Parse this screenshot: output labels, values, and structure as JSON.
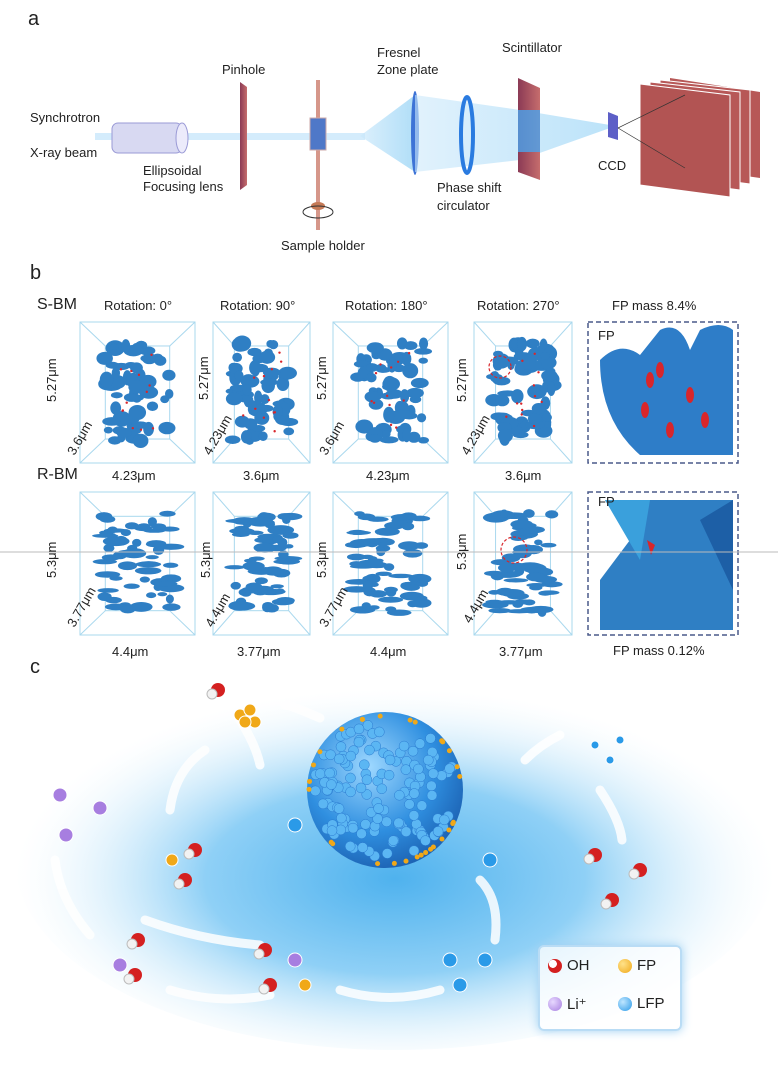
{
  "panel_a": {
    "label": "a",
    "components": {
      "source_line1": "Synchrotron",
      "source_line2": "X-ray beam",
      "lens_line1": "Ellipsoidal",
      "lens_line2": "Focusing lens",
      "pinhole": "Pinhole",
      "sample_holder": "Sample holder",
      "zone_plate_line1": "Fresnel",
      "zone_plate_line2": "Zone plate",
      "phase_line1": "Phase shift",
      "phase_line2": "circulator",
      "scintillator": "Scintillator",
      "ccd": "CCD"
    }
  },
  "panel_b": {
    "label": "b",
    "rows": [
      {
        "name": "S-BM",
        "fp_mass": "FP mass 8.4%",
        "fp_label": "FP",
        "views": [
          {
            "rotation": "Rotation: 0°",
            "height": "5.27μm",
            "depth": "3.6μm",
            "width": "4.23μm"
          },
          {
            "rotation": "Rotation: 90°",
            "height": "5.27μm",
            "depth": "4.23μm",
            "width": "3.6μm"
          },
          {
            "rotation": "Rotation: 180°",
            "height": "5.27μm",
            "depth": "3.6μm",
            "width": "4.23μm"
          },
          {
            "rotation": "Rotation: 270°",
            "height": "5.27μm",
            "depth": "4.23μm",
            "width": "3.6μm"
          }
        ]
      },
      {
        "name": "R-BM",
        "fp_mass": "FP mass 0.12%",
        "fp_label": "FP",
        "views": [
          {
            "height": "5.3μm",
            "depth": "3.77μm",
            "width": "4.4μm"
          },
          {
            "height": "5.3μm",
            "depth": "4.4μm",
            "width": "3.77μm"
          },
          {
            "height": "5.3μm",
            "depth": "3.77μm",
            "width": "4.4μm"
          },
          {
            "height": "5.3μm",
            "depth": "4.4μm",
            "width": "3.77μm"
          }
        ]
      }
    ],
    "colors": {
      "particle": "#2f7fc4",
      "fp": "#d8262b",
      "box": "#a9d8ee",
      "frame": "#4a5a8a"
    }
  },
  "panel_c": {
    "label": "c",
    "legend": [
      {
        "label": "OH",
        "icon": "oh-molecule-icon",
        "color": "#d42020"
      },
      {
        "label": "FP",
        "icon": "fp-sphere-icon",
        "color": "#f0a818"
      },
      {
        "label": "Li⁺",
        "icon": "li-ion-icon",
        "color": "#a77ee0"
      },
      {
        "label": "LFP",
        "icon": "lfp-sphere-icon",
        "color": "#2a9ae8"
      }
    ]
  }
}
